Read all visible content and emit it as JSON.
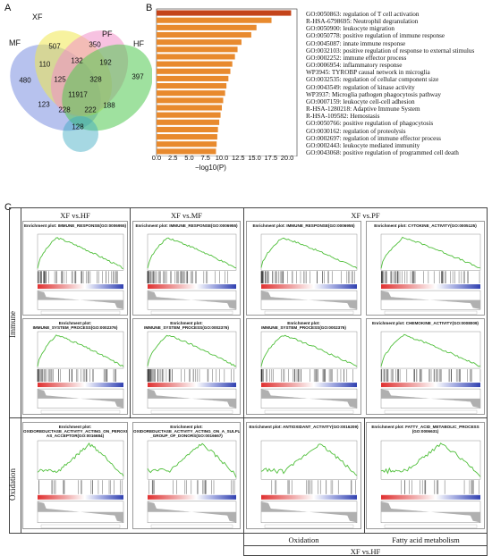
{
  "panel_a": {
    "label": "A",
    "sets": {
      "mf": "MF",
      "xf": "XF",
      "pf": "PF",
      "hf": "HF"
    },
    "counts": [
      "507",
      "350",
      "480",
      "397",
      "110",
      "132",
      "192",
      "125",
      "328",
      "11917",
      "123",
      "228",
      "222",
      "188",
      "128"
    ],
    "colors": {
      "mf": "#7b8fe0",
      "xf": "#f0e850",
      "pf": "#f090c8",
      "hf": "#50c850",
      "bottom": "#3aa8c0"
    }
  },
  "panel_b": {
    "label": "B",
    "xlabel": "−log10(P)",
    "xticks": [
      "0.0",
      "2.5",
      "5.0",
      "7.5",
      "10.0",
      "12.5",
      "15.0",
      "17.5",
      "20.0"
    ],
    "terms": [
      "GO:0050863: regulation of T cell activation",
      "R-HSA-6798695: Neutrophil degranulation",
      "GO:0050900: leukocyte migration",
      "GO:0050778: positive regulation of immune response",
      "GO:0045087: innate immune response",
      "GO:0032103: positive regulation of response to external stimulus",
      "GO:0002252: immune effector process",
      "GO:0006954: inflammatory response",
      "WP3945: TYROBP causal network in microglia",
      "GO:0032535: regulation of cellular component size",
      "GO:0043549: regulation of kinase activity",
      "WP3937: Microglia pathogen phagocytosis pathway",
      "GO:0007159: leukocyte cell-cell adhesion",
      "R-HSA-1280218: Adaptive Immune System",
      "R-HSA-109582: Hemostasis",
      "GO:0050766: positive regulation of phagocytosis",
      "GO:0030162: regulation of proteolysis",
      "GO:0002697: regulation of immune effector process",
      "GO:0002443: leukocyte mediated immunity",
      "GO:0043068: positive regulation of programmed cell death"
    ]
  },
  "chart_data": {
    "type": "bar",
    "orientation": "horizontal",
    "xlabel": "−log10(P)",
    "xlim": [
      0,
      21.5
    ],
    "categories": [
      "GO:0050863: regulation of T cell activation",
      "R-HSA-6798695: Neutrophil degranulation",
      "GO:0050900: leukocyte migration",
      "GO:0050778: positive regulation of immune response",
      "GO:0045087: innate immune response",
      "GO:0032103: positive regulation of response to external stimulus",
      "GO:0002252: immune effector process",
      "GO:0006954: inflammatory response",
      "WP3945: TYROBP causal network in microglia",
      "GO:0032535: regulation of cellular component size",
      "GO:0043549: regulation of kinase activity",
      "WP3937: Microglia pathogen phagocytosis pathway",
      "GO:0007159: leukocyte cell-cell adhesion",
      "R-HSA-1280218: Adaptive Immune System",
      "R-HSA-109582: Hemostasis",
      "GO:0050766: positive regulation of phagocytosis",
      "GO:0030162: regulation of proteolysis",
      "GO:0002697: regulation of immune effector process",
      "GO:0002443: leukocyte mediated immunity",
      "GO:0043068: positive regulation of programmed cell death"
    ],
    "values": [
      20.6,
      17.6,
      15.3,
      14.5,
      13.0,
      12.4,
      12.0,
      11.6,
      11.3,
      11.0,
      10.7,
      10.5,
      10.2,
      10.0,
      9.8,
      9.6,
      9.4,
      9.3,
      9.2,
      9.1
    ],
    "colors": {
      "top": "#c4441a",
      "bar": "#e88a2e"
    }
  },
  "panel_c": {
    "label": "C",
    "column_headers": [
      "XF vs.HF",
      "XF vs.MF",
      "XF vs.PF"
    ],
    "row_labels": {
      "immune": "Immune",
      "oxidation": "Oxidation"
    },
    "bottom_labels": {
      "oxidation": "Oxidation",
      "fatty": "Fatty acid metabolism",
      "xfhf": "XF vs.HF"
    },
    "plots": [
      {
        "title": "Enrichment plot: IMMUNE_RESPONSE(GO:0006955)",
        "shape": "pos"
      },
      {
        "title": "Enrichment plot: IMMUNE_RESPONSE(GO:0006955)",
        "shape": "pos"
      },
      {
        "title": "Enrichment plot: IMMUNE_RESPONSE(GO:0006955)",
        "shape": "pos"
      },
      {
        "title": "Enrichment plot: CYTOKINE_ACTIVITY(GO:0005125)",
        "shape": "pos"
      },
      {
        "title": "Enrichment plot: IMMUNE_SYSTEM_PROCESS(GO:0002376)",
        "shape": "pos"
      },
      {
        "title": "Enrichment plot: IMMUNE_SYSTEM_PROCESS(GO:0002376)",
        "shape": "pos"
      },
      {
        "title": "Enrichment plot: IMMUNE_SYSTEM_PROCESS(GO:0002376)",
        "shape": "pos"
      },
      {
        "title": "Enrichment plot: CHEMOKINE_ACTIVITY(GO:0008009)",
        "shape": "pos"
      },
      {
        "title": "Enrichment plot: OXIDOREDUCTASE_ACTIVITY_ACTING_ON_PEROXIDE AS_ACCEPTOR(GO:0016684)",
        "shape": "ox"
      },
      {
        "title": "Enrichment plot: OXIDOREDUCTASE_ACTIVITY_ACTING_ON_A_SULFUR _GROUP_OF_DONORS(GO:0016667)",
        "shape": "ox"
      },
      {
        "title": "Enrichment plot: ANTIOXIDANT_ACTIVITY(GO:0016209)",
        "shape": "ox"
      },
      {
        "title": "Enrichment plot: FATTY_ACID_METABOLIC_PROCESS (GO:0006631)",
        "shape": "ox"
      }
    ]
  }
}
